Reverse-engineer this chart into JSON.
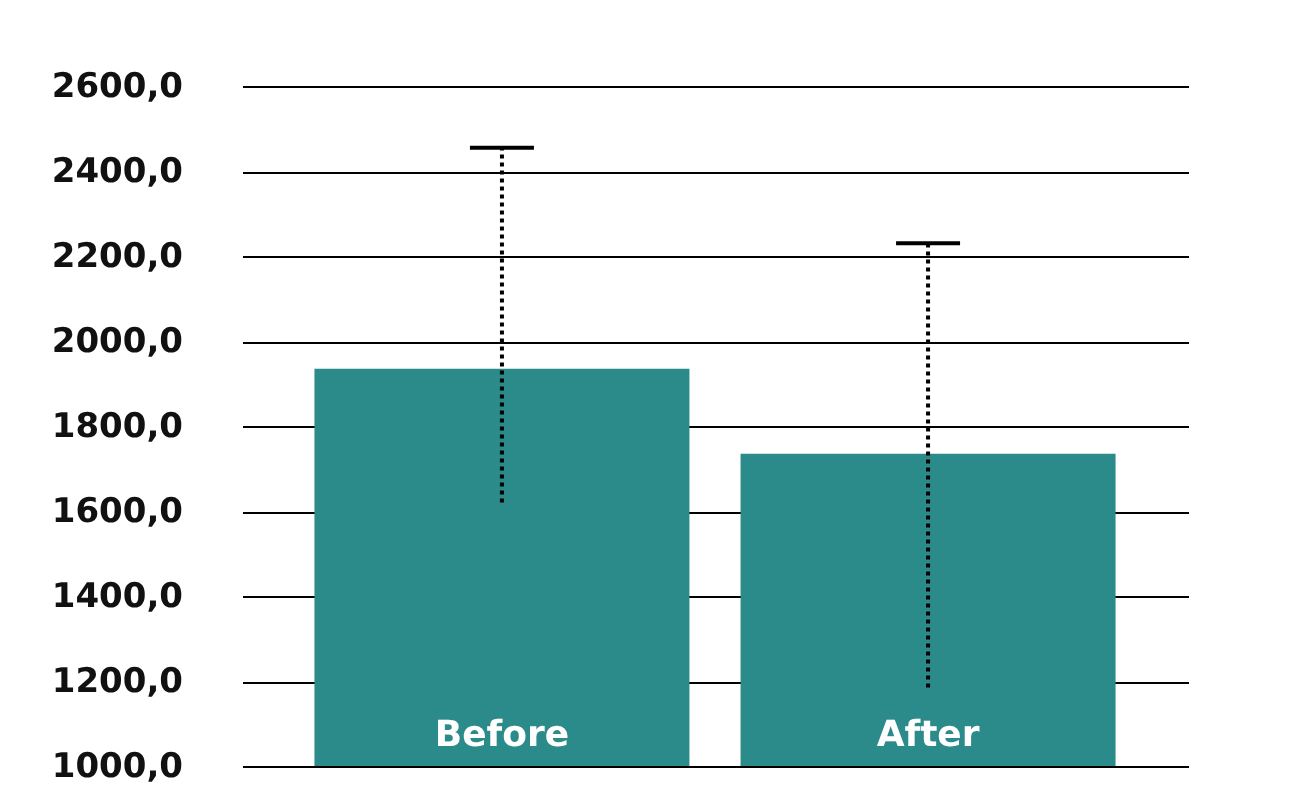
{
  "chart_data": {
    "type": "bar",
    "categories": [
      "Before",
      "After"
    ],
    "values": [
      1935,
      1735
    ],
    "errors": [
      [
        1620,
        2455
      ],
      [
        1185,
        2230
      ]
    ],
    "color": "#2b8a8a",
    "ylim": [
      1000,
      2600
    ],
    "yticks": [
      {
        "value": 1000,
        "label": "1000,0"
      },
      {
        "value": 1200,
        "label": "1200,0"
      },
      {
        "value": 1400,
        "label": "1400,0"
      },
      {
        "value": 1600,
        "label": "1600,0"
      },
      {
        "value": 1800,
        "label": "1800,0"
      },
      {
        "value": 2000,
        "label": "2000,0"
      },
      {
        "value": 2200,
        "label": "2200,0"
      },
      {
        "value": 2400,
        "label": "2400,0"
      },
      {
        "value": 2600,
        "label": "2600,0"
      }
    ],
    "grid": "y"
  }
}
